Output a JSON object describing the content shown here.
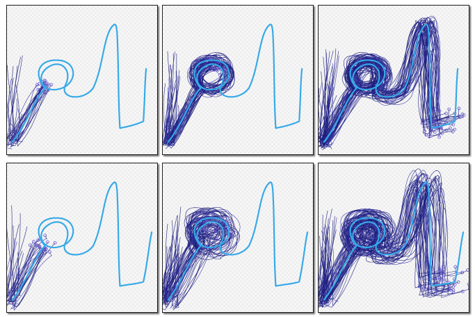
{
  "figure": {
    "rows": 2,
    "columns": 3,
    "colors": {
      "target_curve": "#36a9e8",
      "trajectory_dark": "#1b1b7a",
      "trajectory_mid": "#3a3aa8",
      "start_marker": "#6a5acd"
    },
    "panels": [
      {
        "row": 0,
        "col": 0,
        "target": "full",
        "stage": 0
      },
      {
        "row": 0,
        "col": 1,
        "target": "full",
        "stage": 1
      },
      {
        "row": 0,
        "col": 2,
        "target": "full",
        "stage": 2
      },
      {
        "row": 1,
        "col": 0,
        "target": "extended",
        "stage": 0
      },
      {
        "row": 1,
        "col": 1,
        "target": "extended",
        "stage": 1
      },
      {
        "row": 1,
        "col": 2,
        "target": "extended",
        "stage": 2
      }
    ]
  }
}
